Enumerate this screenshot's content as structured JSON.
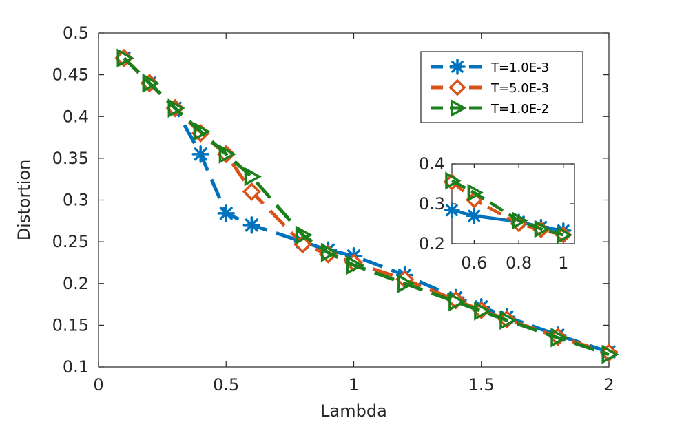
{
  "chart_data": [
    {
      "type": "line",
      "title": "",
      "xlabel": "Lambda",
      "ylabel": "Distortion",
      "xlim": [
        0,
        2
      ],
      "ylim": [
        0.1,
        0.5
      ],
      "xticks": [
        "0",
        "0.5",
        "1",
        "1.5",
        "2"
      ],
      "yticks": [
        "0.1",
        "0.15",
        "0.2",
        "0.25",
        "0.3",
        "0.35",
        "0.4",
        "0.45",
        "0.5"
      ],
      "grid": false,
      "legend_position": "top-right",
      "series": [
        {
          "name": "T=1.0E-3",
          "color": "#0072BD",
          "marker": "asterisk",
          "x": [
            0.1,
            0.2,
            0.3,
            0.4,
            0.5,
            0.6,
            0.8,
            0.9,
            1.0,
            1.2,
            1.4,
            1.5,
            1.6,
            1.8,
            2.0
          ],
          "y": [
            0.47,
            0.44,
            0.41,
            0.355,
            0.284,
            0.27,
            0.25,
            0.24,
            0.233,
            0.21,
            0.183,
            0.172,
            0.16,
            0.138,
            0.118
          ]
        },
        {
          "name": "T=5.0E-3",
          "color": "#D95319",
          "marker": "diamond",
          "x": [
            0.1,
            0.2,
            0.3,
            0.4,
            0.5,
            0.6,
            0.8,
            0.9,
            1.0,
            1.2,
            1.4,
            1.5,
            1.6,
            1.8,
            2.0
          ],
          "y": [
            0.47,
            0.44,
            0.41,
            0.38,
            0.355,
            0.31,
            0.247,
            0.235,
            0.225,
            0.205,
            0.18,
            0.168,
            0.157,
            0.136,
            0.117
          ]
        },
        {
          "name": "T=1.0E-2",
          "color": "#1B7F1B",
          "marker": "triangle-right",
          "x": [
            0.1,
            0.2,
            0.3,
            0.4,
            0.5,
            0.6,
            0.8,
            0.9,
            1.0,
            1.2,
            1.4,
            1.5,
            1.6,
            1.8,
            2.0
          ],
          "y": [
            0.47,
            0.44,
            0.41,
            0.382,
            0.355,
            0.328,
            0.258,
            0.237,
            0.222,
            0.2,
            0.178,
            0.167,
            0.156,
            0.135,
            0.115
          ]
        }
      ]
    },
    {
      "type": "line",
      "title": "",
      "xlabel": "",
      "ylabel": "",
      "xlim": [
        0.5,
        1.05
      ],
      "ylim": [
        0.2,
        0.4
      ],
      "xticks": [
        "0.6",
        "0.8",
        "1"
      ],
      "yticks": [
        "0.2",
        "0.3",
        "0.4"
      ],
      "grid": false,
      "series": [
        {
          "name": "T=1.0E-3",
          "color": "#0072BD",
          "marker": "asterisk",
          "x": [
            0.5,
            0.6,
            0.8,
            0.9,
            1.0
          ],
          "y": [
            0.284,
            0.27,
            0.255,
            0.242,
            0.233
          ]
        },
        {
          "name": "T=5.0E-3",
          "color": "#D95319",
          "marker": "diamond",
          "x": [
            0.5,
            0.6,
            0.8,
            0.9,
            1.0
          ],
          "y": [
            0.355,
            0.31,
            0.25,
            0.235,
            0.222
          ]
        },
        {
          "name": "T=1.0E-2",
          "color": "#1B7F1B",
          "marker": "triangle-right",
          "x": [
            0.5,
            0.6,
            0.8,
            0.9,
            1.0
          ],
          "y": [
            0.358,
            0.328,
            0.258,
            0.237,
            0.222
          ]
        }
      ]
    }
  ]
}
